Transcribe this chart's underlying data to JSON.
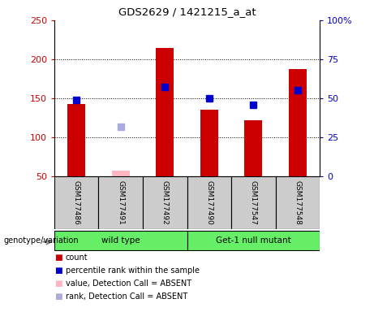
{
  "title": "GDS2629 / 1421215_a_at",
  "samples": [
    "GSM177486",
    "GSM177491",
    "GSM177492",
    "GSM177490",
    "GSM177547",
    "GSM177548"
  ],
  "bar_values": [
    143,
    null,
    215,
    135,
    122,
    187
  ],
  "bar_absent_values": [
    null,
    57,
    null,
    null,
    null,
    null
  ],
  "percentile_values": [
    148,
    null,
    165,
    150,
    142,
    160
  ],
  "percentile_absent_values": [
    null,
    114,
    null,
    null,
    null,
    null
  ],
  "bar_color": "#CC0000",
  "bar_absent_color": "#FFB6C1",
  "percentile_color": "#0000CC",
  "percentile_absent_color": "#AAAADD",
  "ylim_left": [
    50,
    250
  ],
  "ylim_right": [
    0,
    100
  ],
  "yticks_left": [
    50,
    100,
    150,
    200,
    250
  ],
  "yticks_right": [
    0,
    25,
    50,
    75,
    100
  ],
  "ytick_labels_right": [
    "0",
    "25",
    "50",
    "75",
    "100%"
  ],
  "grid_values": [
    100,
    150,
    200
  ],
  "group_label": "genotype/variation",
  "wt_label": "wild type",
  "mut_label": "Get-1 null mutant",
  "group_color": "#66EE66",
  "sample_box_color": "#CCCCCC",
  "legend": [
    {
      "label": "count",
      "color": "#CC0000"
    },
    {
      "label": "percentile rank within the sample",
      "color": "#0000CC"
    },
    {
      "label": "value, Detection Call = ABSENT",
      "color": "#FFB6C1"
    },
    {
      "label": "rank, Detection Call = ABSENT",
      "color": "#AAAADD"
    }
  ],
  "bar_width": 0.4,
  "marker_size": 6,
  "background_color": "#FFFFFF",
  "plot_bg_color": "#FFFFFF"
}
